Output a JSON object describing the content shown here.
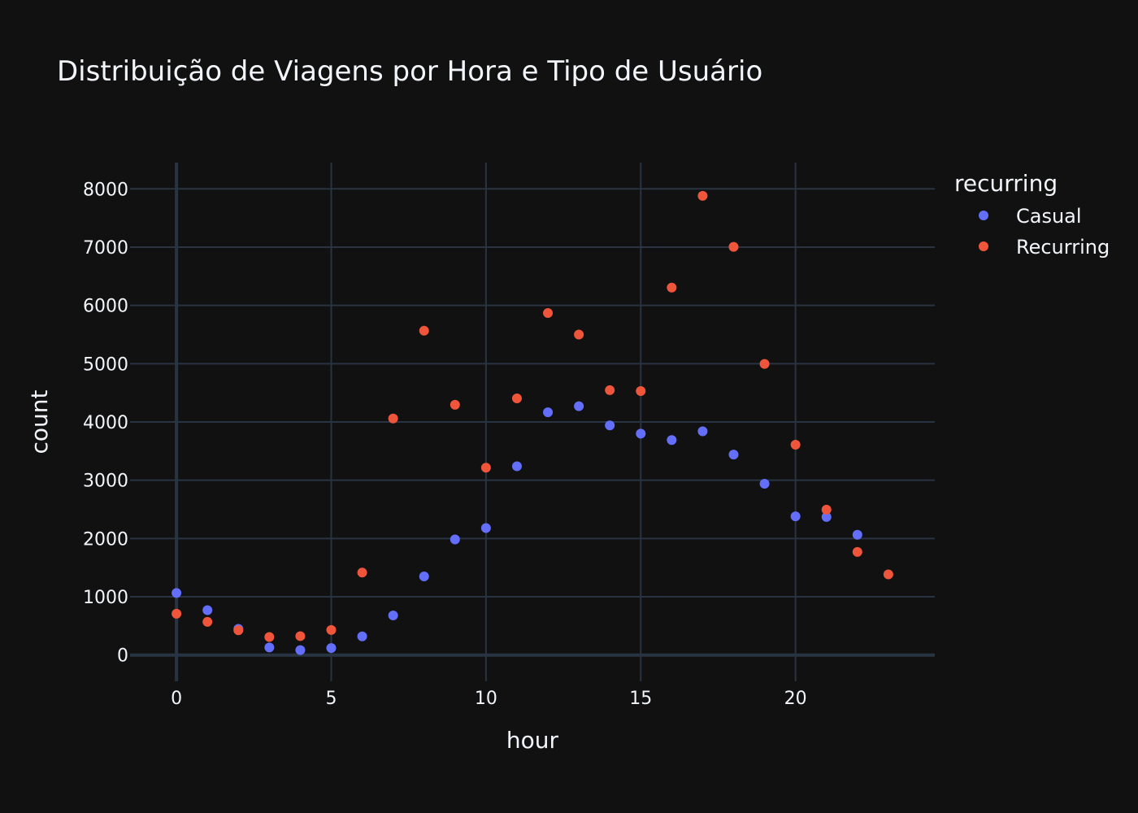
{
  "chart_data": {
    "type": "scatter",
    "title": "Distribuição de Viagens por Hora e Tipo de Usuário",
    "xlabel": "hour",
    "ylabel": "count",
    "xlim": [
      -1.5,
      24.5
    ],
    "ylim": [
      -450,
      8450
    ],
    "xticks": [
      0,
      5,
      10,
      15,
      20
    ],
    "yticks": [
      0,
      1000,
      2000,
      3000,
      4000,
      5000,
      6000,
      7000,
      8000
    ],
    "grid": true,
    "legend": {
      "title": "recurring",
      "placement": "top-right"
    },
    "series": [
      {
        "name": "Casual",
        "color": "#636efa",
        "points": [
          [
            0,
            1065
          ],
          [
            1,
            770
          ],
          [
            2,
            450
          ],
          [
            3,
            130
          ],
          [
            4,
            85
          ],
          [
            5,
            120
          ],
          [
            6,
            320
          ],
          [
            7,
            680
          ],
          [
            8,
            1350
          ],
          [
            9,
            1985
          ],
          [
            10,
            2180
          ],
          [
            11,
            3240
          ],
          [
            12,
            4165
          ],
          [
            13,
            4270
          ],
          [
            14,
            3940
          ],
          [
            15,
            3800
          ],
          [
            16,
            3690
          ],
          [
            17,
            3840
          ],
          [
            18,
            3440
          ],
          [
            19,
            2940
          ],
          [
            20,
            2380
          ],
          [
            21,
            2370
          ],
          [
            22,
            2065
          ]
        ]
      },
      {
        "name": "Recurring",
        "color": "#ef553b",
        "points": [
          [
            0,
            710
          ],
          [
            1,
            570
          ],
          [
            2,
            425
          ],
          [
            3,
            310
          ],
          [
            4,
            325
          ],
          [
            5,
            430
          ],
          [
            6,
            1415
          ],
          [
            7,
            4060
          ],
          [
            8,
            5565
          ],
          [
            9,
            4295
          ],
          [
            10,
            3215
          ],
          [
            11,
            4405
          ],
          [
            12,
            5870
          ],
          [
            13,
            5500
          ],
          [
            14,
            4545
          ],
          [
            15,
            4530
          ],
          [
            16,
            6305
          ],
          [
            17,
            7880
          ],
          [
            18,
            7005
          ],
          [
            19,
            4995
          ],
          [
            20,
            3610
          ],
          [
            21,
            2495
          ],
          [
            22,
            1770
          ],
          [
            23,
            1385
          ]
        ]
      }
    ]
  }
}
